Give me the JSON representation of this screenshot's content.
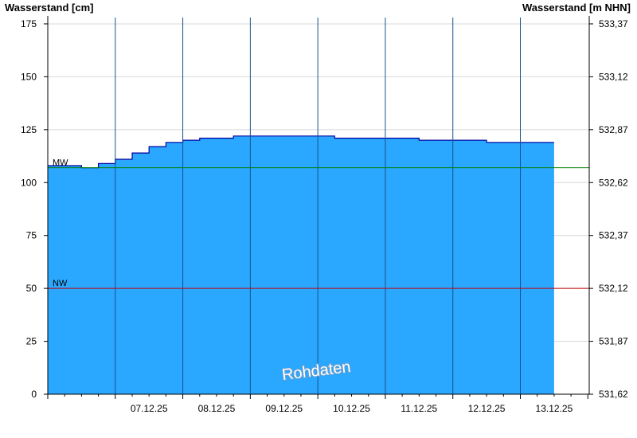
{
  "chart_data": {
    "type": "area",
    "title": "",
    "ylabel_left": "Wasserstand [cm]",
    "ylabel_right": "Wasserstand [m NHN]",
    "ylim": [
      0,
      178
    ],
    "y_ticks": [
      0,
      25,
      50,
      75,
      100,
      125,
      150,
      175
    ],
    "y_ticks_right": [
      "531,62",
      "531,87",
      "532,12",
      "532,37",
      "532,62",
      "532,87",
      "533,12",
      "533,37"
    ],
    "x_range": [
      "2025-12-06T00:00",
      "2025-12-13T12:00"
    ],
    "x_tick_labels": [
      "07.12.25",
      "08.12.25",
      "09.12.25",
      "10.12.25",
      "11.12.25",
      "12.12.25",
      "13.12.25"
    ],
    "series": [
      {
        "x": [
          "2025-12-06T00:00",
          "2025-12-06T06:00",
          "2025-12-06T12:00",
          "2025-12-06T18:00",
          "2025-12-07T00:00",
          "2025-12-07T06:00",
          "2025-12-07T12:00",
          "2025-12-07T18:00",
          "2025-12-08T00:00",
          "2025-12-08T06:00",
          "2025-12-08T12:00",
          "2025-12-08T18:00",
          "2025-12-09T00:00",
          "2025-12-09T06:00",
          "2025-12-09T12:00",
          "2025-12-09T18:00",
          "2025-12-10T00:00",
          "2025-12-10T06:00",
          "2025-12-10T12:00",
          "2025-12-10T18:00",
          "2025-12-11T00:00",
          "2025-12-11T06:00",
          "2025-12-11T12:00",
          "2025-12-11T18:00",
          "2025-12-12T00:00",
          "2025-12-12T06:00",
          "2025-12-12T12:00",
          "2025-12-12T18:00",
          "2025-12-13T00:00",
          "2025-12-13T06:00",
          "2025-12-13T12:00"
        ],
        "values": [
          108,
          108,
          107,
          109,
          111,
          114,
          117,
          119,
          120,
          121,
          121,
          122,
          122,
          122,
          122,
          122,
          122,
          121,
          121,
          121,
          121,
          121,
          120,
          120,
          120,
          120,
          119,
          119,
          119,
          119,
          119
        ],
        "color": "#2aa7ff"
      }
    ],
    "reference_lines": [
      {
        "label": "MW",
        "value": 107,
        "color": "#008000"
      },
      {
        "label": "NW",
        "value": 50,
        "color": "#c00000"
      }
    ],
    "annotation": "Rohdaten",
    "grid": true
  }
}
